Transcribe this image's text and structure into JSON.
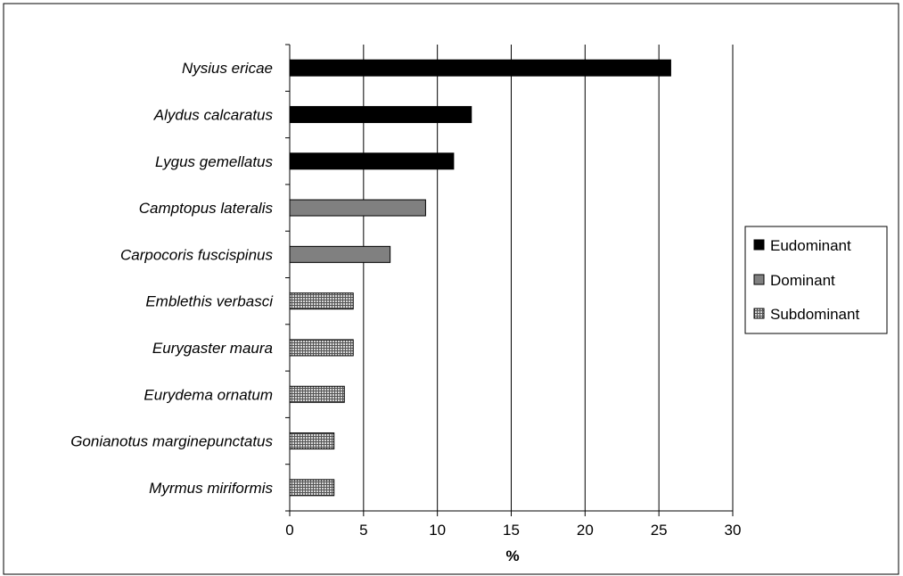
{
  "colors": {
    "eudominant": "#000000",
    "dominant": "#808080",
    "subdominant_fill": "#d8d8d8",
    "subdominant_hatch": "#555555",
    "grid": "#000000"
  },
  "chart_data": {
    "type": "bar",
    "orientation": "horizontal",
    "title": "",
    "xlabel": "%",
    "ylabel": "",
    "xlim": [
      0,
      30
    ],
    "xticks": [
      0,
      5,
      10,
      15,
      20,
      25,
      30
    ],
    "grid": true,
    "legend_position": "right",
    "categories": [
      "Nysius ericae",
      "Alydus calcaratus",
      "Lygus gemellatus",
      "Camptopus lateralis",
      "Carpocoris fuscispinus",
      "Emblethis verbasci",
      "Eurygaster maura",
      "Eurydema ornatum",
      "Gonianotus marginepunctatus",
      "Myrmus miriformis"
    ],
    "values": [
      25.8,
      12.3,
      11.1,
      9.2,
      6.8,
      4.3,
      4.3,
      3.7,
      3.0,
      3.0
    ],
    "groups": [
      "Eudominant",
      "Eudominant",
      "Eudominant",
      "Dominant",
      "Dominant",
      "Subdominant",
      "Subdominant",
      "Subdominant",
      "Subdominant",
      "Subdominant"
    ],
    "legend": [
      "Eudominant",
      "Dominant",
      "Subdominant"
    ]
  }
}
